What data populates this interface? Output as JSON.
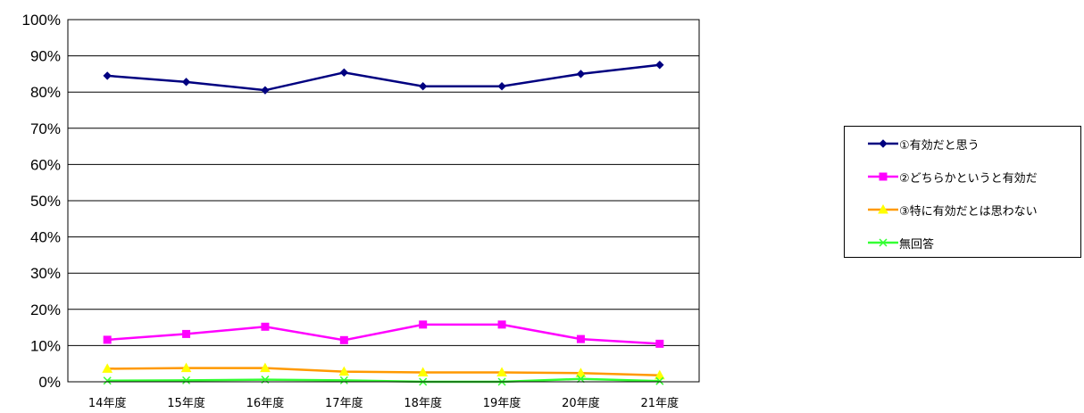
{
  "chart_data": {
    "type": "line",
    "categories": [
      "14年度",
      "15年度",
      "16年度",
      "17年度",
      "18年度",
      "19年度",
      "20年度",
      "21年度"
    ],
    "ylim": [
      0,
      100
    ],
    "yticks": [
      0,
      10,
      20,
      30,
      40,
      50,
      60,
      70,
      80,
      90,
      100
    ],
    "ytick_labels": [
      "0%",
      "10%",
      "20%",
      "30%",
      "40%",
      "50%",
      "60%",
      "70%",
      "80%",
      "90%",
      "100%"
    ],
    "grid": true,
    "legend_position": "right",
    "series": [
      {
        "name": "①有効だと思う",
        "color": "#000080",
        "marker": "diamond",
        "values": [
          84.5,
          82.8,
          80.5,
          85.4,
          81.6,
          81.6,
          85.0,
          87.5
        ]
      },
      {
        "name": "②どちらかというと有効だ",
        "color": "#FF00FF",
        "marker": "square",
        "values": [
          11.6,
          13.2,
          15.2,
          11.5,
          15.8,
          15.8,
          11.8,
          10.5
        ]
      },
      {
        "name": "③特に有効だとは思わない",
        "color": "#FF9900",
        "marker": "triangle",
        "marker_color": "#FFFF00",
        "values": [
          3.6,
          3.8,
          3.8,
          2.8,
          2.6,
          2.6,
          2.4,
          1.8
        ]
      },
      {
        "name": "無回答",
        "color": "#33FF33",
        "marker": "x",
        "values": [
          0.3,
          0.4,
          0.6,
          0.4,
          0.0,
          0.0,
          0.8,
          0.2
        ]
      }
    ]
  }
}
